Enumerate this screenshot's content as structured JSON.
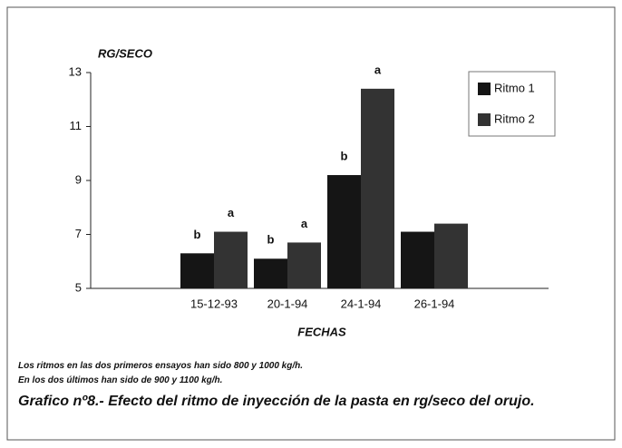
{
  "chart_data": {
    "type": "bar",
    "y_axis_label": "RG/SECO",
    "x_axis_label": "FECHAS",
    "categories": [
      null,
      "15-12-93",
      "20-1-94",
      "24-1-94",
      "26-1-94",
      null
    ],
    "series": [
      {
        "name": "Ritmo 1",
        "color": "#151515",
        "values": [
          null,
          6.3,
          6.1,
          9.2,
          7.1,
          null
        ],
        "annotations": [
          null,
          "b",
          "b",
          "b",
          null,
          null
        ]
      },
      {
        "name": "Ritmo 2",
        "color": "#333333",
        "values": [
          null,
          7.1,
          6.7,
          12.4,
          7.4,
          null
        ],
        "annotations": [
          null,
          "a",
          "a",
          "a",
          null,
          null
        ]
      }
    ],
    "ylim": [
      5,
      13
    ],
    "yticks": [
      5,
      7,
      9,
      11,
      13
    ],
    "legend": "upper right",
    "notes": [
      "Los ritmos en las dos primeros ensayos han sido 800 y 1000 kg/h.",
      "En los dos últimos han sido de 900 y 1100 kg/h."
    ],
    "caption": "Grafico nº8.- Efecto del ritmo de inyección de la pasta en rg/seco del orujo."
  }
}
